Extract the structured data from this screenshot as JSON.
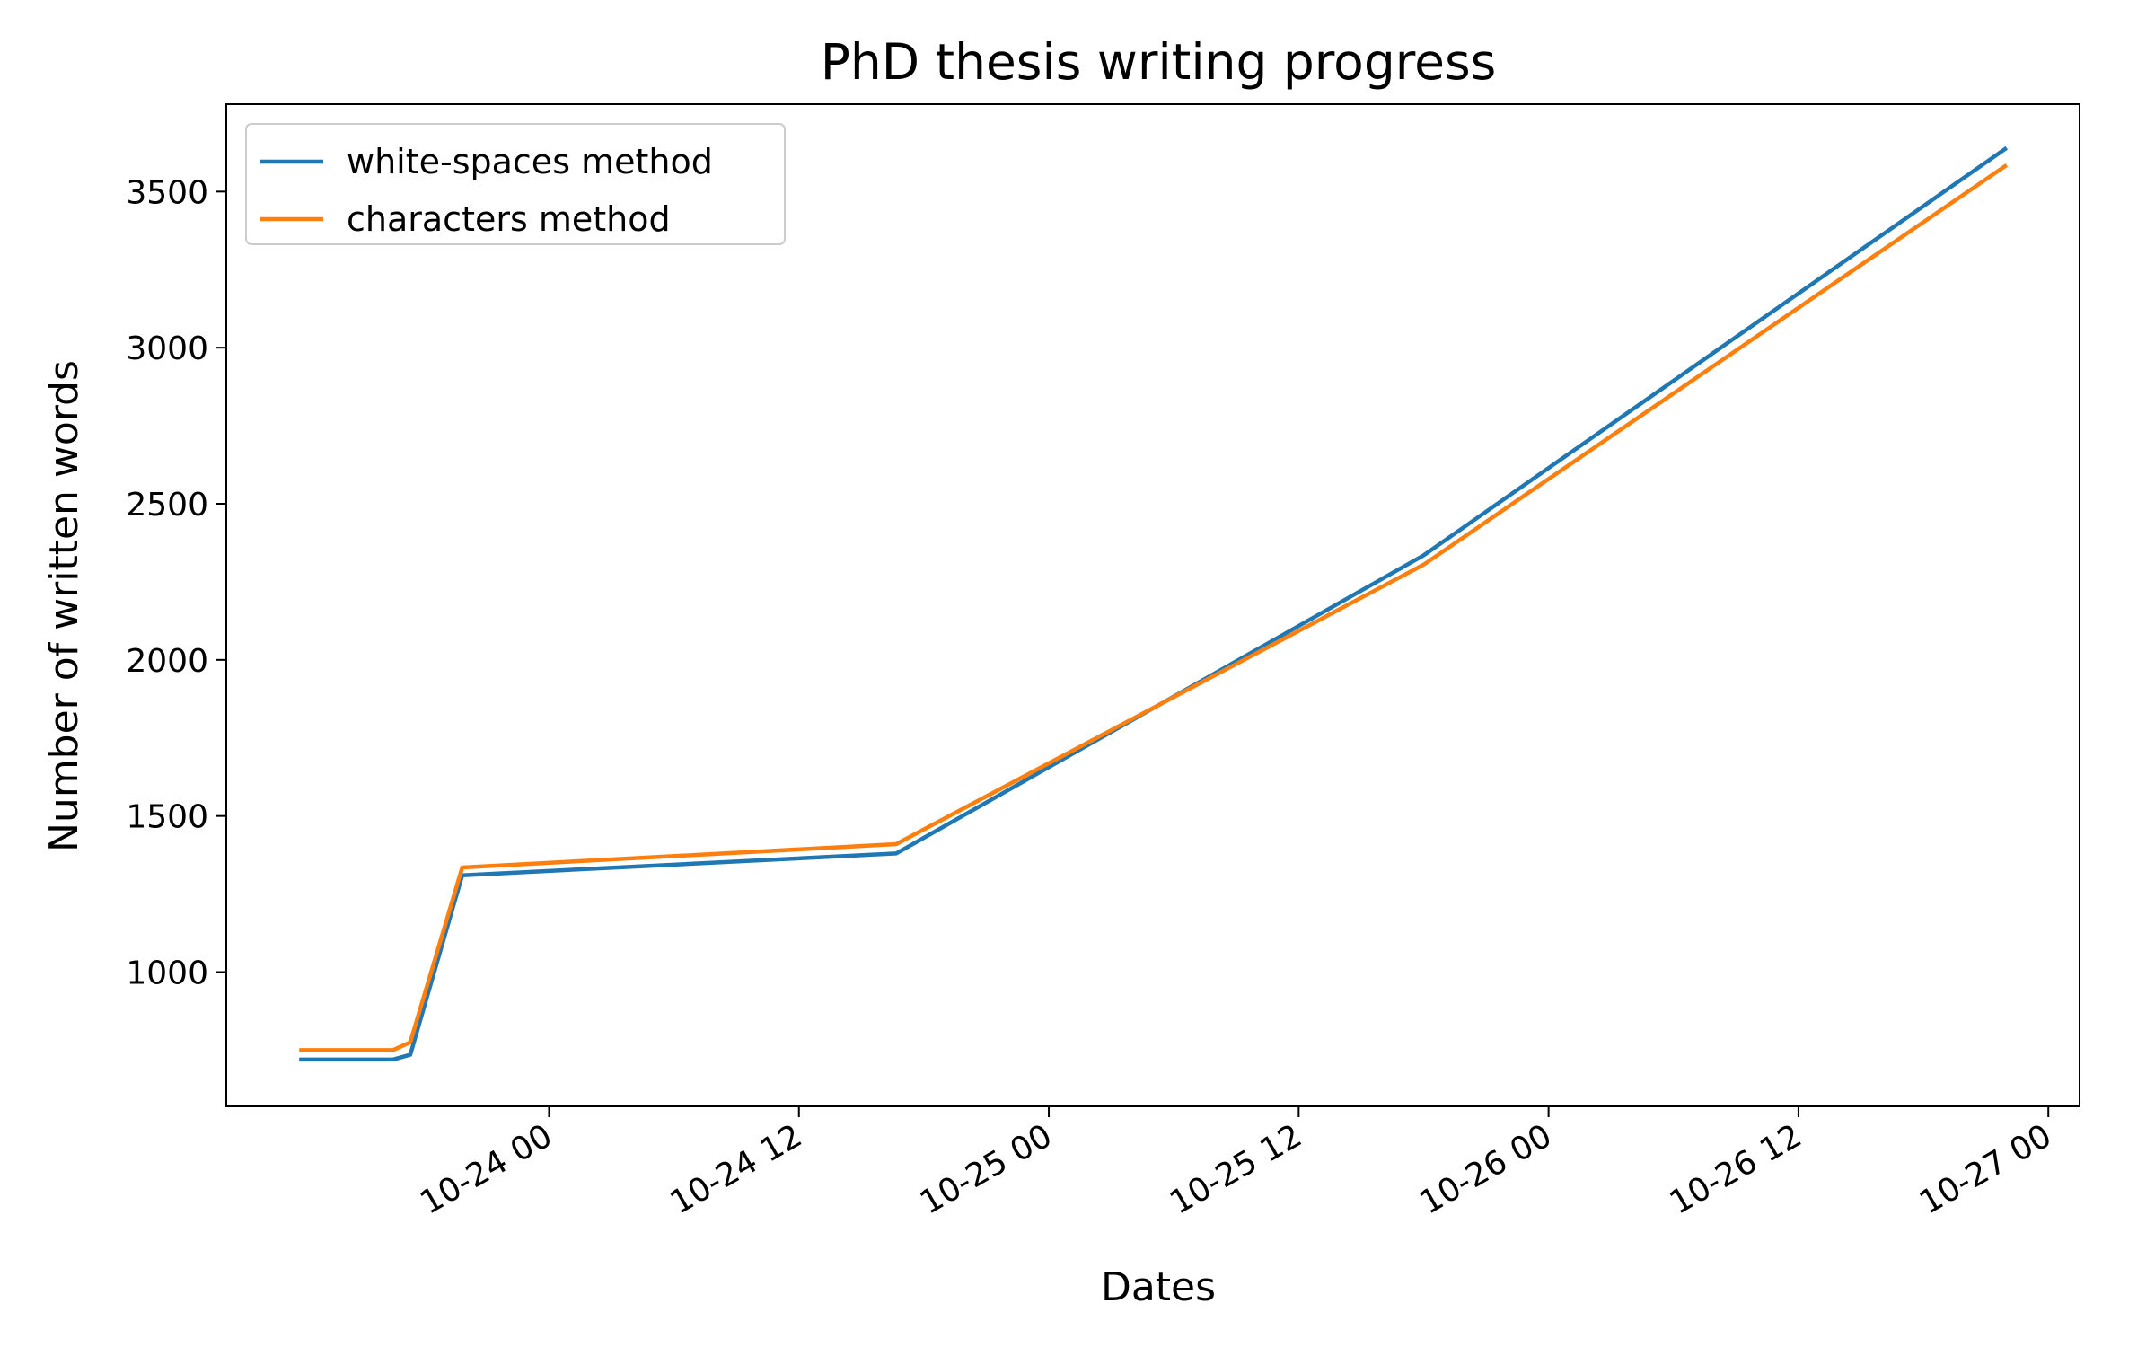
{
  "chart_data": {
    "type": "line",
    "title": "PhD thesis writing progress",
    "xlabel": "Dates",
    "ylabel": "Number of written words",
    "xlim": [
      "2023-10-23 08:30",
      "2023-10-27 01:30"
    ],
    "ylim": [
      570,
      3780
    ],
    "x_ticks": [
      "2023-10-24 00:00",
      "2023-10-24 12:00",
      "2023-10-25 00:00",
      "2023-10-25 12:00",
      "2023-10-26 00:00",
      "2023-10-26 12:00",
      "2023-10-27 00:00"
    ],
    "x_tick_labels": [
      "10-24 00",
      "10-24 12",
      "10-25 00",
      "10-25 12",
      "10-26 00",
      "10-26 12",
      "10-27 00"
    ],
    "y_ticks": [
      1000,
      1500,
      2000,
      2500,
      3000,
      3500
    ],
    "y_tick_labels": [
      "1000",
      "1500",
      "2000",
      "2500",
      "3000",
      "3500"
    ],
    "grid": false,
    "legend": "upper-left",
    "x": [
      "2023-10-23 12:00",
      "2023-10-23 16:30",
      "2023-10-23 17:20",
      "2023-10-23 19:50",
      "2023-10-24 16:40",
      "2023-10-25 18:00",
      "2023-10-26 22:00"
    ],
    "series": [
      {
        "name": "white-spaces method",
        "color": "#1f77b4",
        "values": [
          720,
          720,
          735,
          1310,
          1380,
          2335,
          3640
        ]
      },
      {
        "name": "characters method",
        "color": "#ff7f0e",
        "values": [
          750,
          750,
          775,
          1335,
          1410,
          2305,
          3585
        ]
      }
    ]
  }
}
